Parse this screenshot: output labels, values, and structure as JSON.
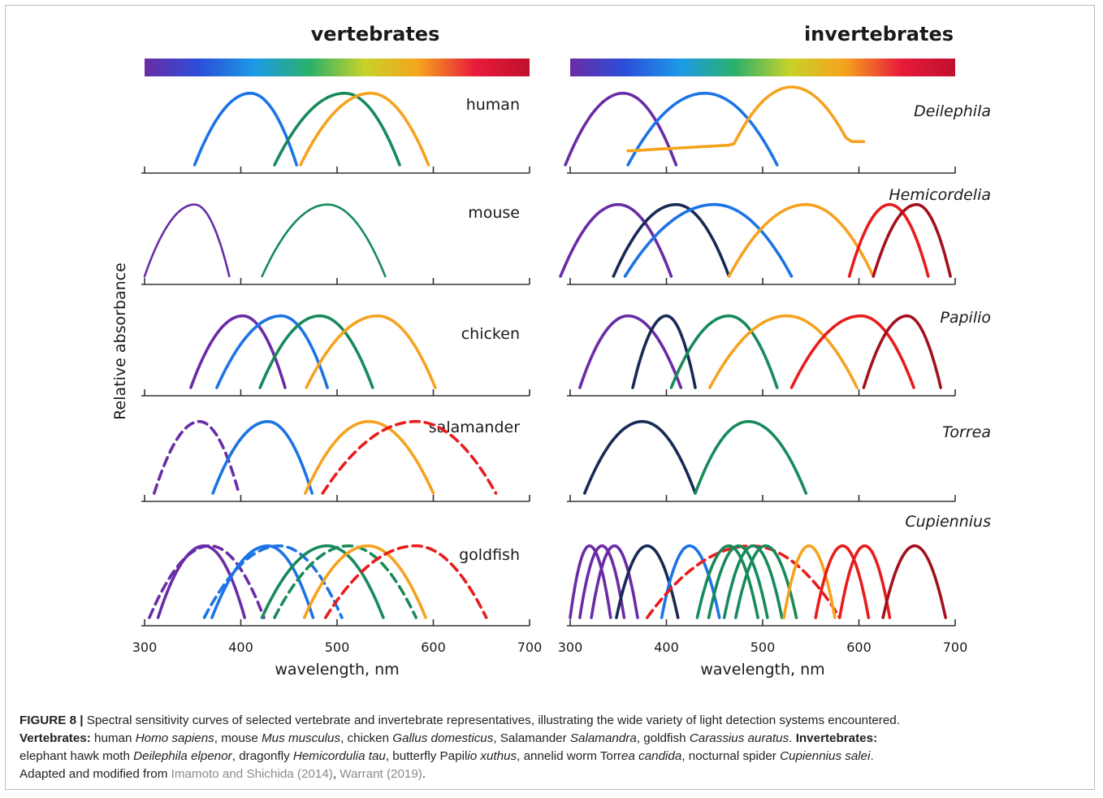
{
  "chart_data": {
    "type": "line",
    "ylabel": "Relative absorbance",
    "colors": {
      "violet": "#6a2ca6",
      "navy": "#172a55",
      "blue": "#1c73e6",
      "green": "#178a5a",
      "orange": "#f5a21e",
      "red": "#e81c1c",
      "darkred": "#a3101e"
    },
    "panels": [
      {
        "title": "vertebrates",
        "xlabel": "wavelength, nm",
        "xlim": [
          300,
          700
        ],
        "x_ticks": [
          300,
          400,
          500,
          600,
          700
        ],
        "x_tick_labels": [
          "300",
          "400",
          "500",
          "600",
          "700"
        ],
        "spectrum_bar": [
          "#6a2ca6",
          "#2b4fd9",
          "#1c9ae6",
          "#2bb06b",
          "#c8d22a",
          "#f5a21e",
          "#e81c3a",
          "#c0102e"
        ],
        "species": [
          {
            "name": "human",
            "italic": false,
            "curves": [
              {
                "peak": 410,
                "start": 352,
                "end": 458,
                "color": "blue",
                "dashed": false
              },
              {
                "peak": 508,
                "start": 435,
                "end": 565,
                "color": "green",
                "dashed": false
              },
              {
                "peak": 535,
                "start": 462,
                "end": 595,
                "color": "orange",
                "dashed": false
              }
            ]
          },
          {
            "name": "mouse",
            "italic": false,
            "curves": [
              {
                "peak": 352,
                "start": 300,
                "end": 388,
                "color": "violet",
                "dashed": false,
                "thin": true
              },
              {
                "peak": 490,
                "start": 422,
                "end": 550,
                "color": "green",
                "dashed": false,
                "thin": true
              }
            ]
          },
          {
            "name": "chicken",
            "italic": false,
            "curves": [
              {
                "peak": 402,
                "start": 348,
                "end": 446,
                "color": "violet",
                "dashed": false
              },
              {
                "peak": 442,
                "start": 375,
                "end": 490,
                "color": "blue",
                "dashed": false
              },
              {
                "peak": 482,
                "start": 420,
                "end": 537,
                "color": "green",
                "dashed": false
              },
              {
                "peak": 542,
                "start": 468,
                "end": 602,
                "color": "orange",
                "dashed": false
              }
            ]
          },
          {
            "name": "salamander",
            "italic": false,
            "curves": [
              {
                "peak": 357,
                "start": 310,
                "end": 398,
                "color": "violet",
                "dashed": true
              },
              {
                "peak": 428,
                "start": 371,
                "end": 474,
                "color": "blue",
                "dashed": true,
                "solid": true
              },
              {
                "peak": 533,
                "start": 467,
                "end": 600,
                "color": "orange",
                "dashed": false
              },
              {
                "peak": 582,
                "start": 485,
                "end": 665,
                "color": "red",
                "dashed": true
              }
            ]
          },
          {
            "name": "goldfish",
            "italic": false,
            "curves": [
              {
                "peak": 362,
                "start": 314,
                "end": 404,
                "color": "violet",
                "dashed": false
              },
              {
                "peak": 368,
                "start": 305,
                "end": 424,
                "color": "violet",
                "dashed": true
              },
              {
                "peak": 428,
                "start": 370,
                "end": 475,
                "color": "blue",
                "dashed": false
              },
              {
                "peak": 440,
                "start": 362,
                "end": 505,
                "color": "blue",
                "dashed": true
              },
              {
                "peak": 490,
                "start": 422,
                "end": 548,
                "color": "green",
                "dashed": false
              },
              {
                "peak": 512,
                "start": 435,
                "end": 582,
                "color": "green",
                "dashed": true
              },
              {
                "peak": 532,
                "start": 466,
                "end": 592,
                "color": "orange",
                "dashed": false
              },
              {
                "peak": 582,
                "start": 488,
                "end": 655,
                "color": "red",
                "dashed": true
              }
            ]
          }
        ]
      },
      {
        "title": "invertebrates",
        "xlabel": "wavelength, nm",
        "xlim": [
          300,
          700
        ],
        "x_ticks": [
          300,
          400,
          500,
          600,
          700
        ],
        "x_tick_labels": [
          "300",
          "400",
          "500",
          "600",
          "700"
        ],
        "spectrum_bar": [
          "#6a2ca6",
          "#2b4fd9",
          "#1c9ae6",
          "#2bb06b",
          "#c8d22a",
          "#f5a21e",
          "#e81c3a",
          "#c0102e"
        ],
        "species": [
          {
            "name": "Deilephila",
            "italic": true,
            "curves": [
              {
                "peak": 355,
                "start": 295,
                "end": 410,
                "color": "violet",
                "dashed": false
              },
              {
                "peak": 440,
                "start": 360,
                "end": 515,
                "color": "blue",
                "dashed": false
              },
              {
                "peak": 530,
                "start": 360,
                "end": 605,
                "color": "orange",
                "dashed": false,
                "shoulder": true
              }
            ]
          },
          {
            "name": "Hemicordelia",
            "italic": true,
            "curves": [
              {
                "peak": 350,
                "start": 290,
                "end": 405,
                "color": "violet",
                "dashed": false
              },
              {
                "peak": 410,
                "start": 345,
                "end": 465,
                "color": "navy",
                "dashed": false
              },
              {
                "peak": 450,
                "start": 357,
                "end": 530,
                "color": "blue",
                "dashed": false
              },
              {
                "peak": 545,
                "start": 465,
                "end": 615,
                "color": "orange",
                "dashed": false
              },
              {
                "peak": 632,
                "start": 590,
                "end": 672,
                "color": "red",
                "dashed": false
              },
              {
                "peak": 660,
                "start": 615,
                "end": 695,
                "color": "darkred",
                "dashed": false
              }
            ]
          },
          {
            "name": "Papilio",
            "italic": true,
            "curves": [
              {
                "peak": 360,
                "start": 310,
                "end": 415,
                "color": "violet",
                "dashed": false
              },
              {
                "peak": 400,
                "start": 365,
                "end": 430,
                "color": "navy",
                "dashed": false
              },
              {
                "peak": 465,
                "start": 405,
                "end": 515,
                "color": "green",
                "dashed": false
              },
              {
                "peak": 525,
                "start": 445,
                "end": 598,
                "color": "orange",
                "dashed": false
              },
              {
                "peak": 602,
                "start": 530,
                "end": 657,
                "color": "red",
                "dashed": false
              },
              {
                "peak": 650,
                "start": 605,
                "end": 685,
                "color": "darkred",
                "dashed": false
              }
            ]
          },
          {
            "name": "Torrea",
            "italic": true,
            "curves": [
              {
                "peak": 375,
                "start": 315,
                "end": 430,
                "color": "navy",
                "dashed": false
              },
              {
                "peak": 485,
                "start": 430,
                "end": 545,
                "color": "green",
                "dashed": false
              }
            ]
          },
          {
            "name": "Cupiennius",
            "italic": true,
            "curves": [
              {
                "peak": 320,
                "start": 300,
                "end": 342,
                "color": "violet",
                "dashed": false
              },
              {
                "peak": 333,
                "start": 310,
                "end": 356,
                "color": "violet",
                "dashed": false
              },
              {
                "peak": 346,
                "start": 322,
                "end": 370,
                "color": "violet",
                "dashed": false
              },
              {
                "peak": 380,
                "start": 348,
                "end": 412,
                "color": "navy",
                "dashed": false
              },
              {
                "peak": 424,
                "start": 395,
                "end": 455,
                "color": "blue",
                "dashed": false
              },
              {
                "peak": 488,
                "start": 380,
                "end": 580,
                "color": "red",
                "dashed": true
              },
              {
                "peak": 465,
                "start": 432,
                "end": 495,
                "color": "green",
                "dashed": false
              },
              {
                "peak": 475,
                "start": 444,
                "end": 505,
                "color": "green",
                "dashed": false
              },
              {
                "peak": 490,
                "start": 460,
                "end": 520,
                "color": "green",
                "dashed": false
              },
              {
                "peak": 503,
                "start": 472,
                "end": 535,
                "color": "green",
                "dashed": false
              },
              {
                "peak": 548,
                "start": 522,
                "end": 575,
                "color": "orange",
                "dashed": false
              },
              {
                "peak": 583,
                "start": 555,
                "end": 610,
                "color": "red",
                "dashed": false
              },
              {
                "peak": 606,
                "start": 580,
                "end": 632,
                "color": "red",
                "dashed": false
              },
              {
                "peak": 658,
                "start": 625,
                "end": 690,
                "color": "darkred",
                "dashed": false
              }
            ]
          }
        ]
      }
    ]
  },
  "caption": {
    "label": "FIGURE 8 |",
    "text1": " Spectral sensitivity curves of selected vertebrate and invertebrate representatives, illustrating the wide variety of light detection systems encountered. ",
    "vert_label": "Vertebrates:",
    "vert_text_a": " human ",
    "vert_sp1": "Homo sapiens",
    "vert_text_b": ", mouse ",
    "vert_sp2": "Mus musculus",
    "vert_text_c": ", chicken ",
    "vert_sp3": "Gallus domesticus",
    "vert_text_d": ", Salamander ",
    "vert_sp4": "Salamandra",
    "vert_text_e": ", goldfish ",
    "vert_sp5": "Carassius auratus",
    "vert_text_f": ". ",
    "inv_label": "Invertebrates:",
    "inv_text_a": " elephant hawk moth ",
    "inv_sp1": "Deilephila elpenor",
    "inv_text_b": ", dragonfly ",
    "inv_sp2": "Hemicordulia tau",
    "inv_text_c": ", butterfly Papil",
    "inv_sp3": "io xuthus",
    "inv_text_d": ", annelid worm Torr",
    "inv_sp4": "ea candida",
    "inv_text_e": ", nocturnal spider ",
    "inv_sp5": "Cupiennius salei",
    "inv_text_f": ".",
    "adapted": "Adapted and modified from ",
    "ref1": "Imamoto and Shichida (2014)",
    "sep": ", ",
    "ref2": "Warrant (2019)",
    "end": "."
  }
}
